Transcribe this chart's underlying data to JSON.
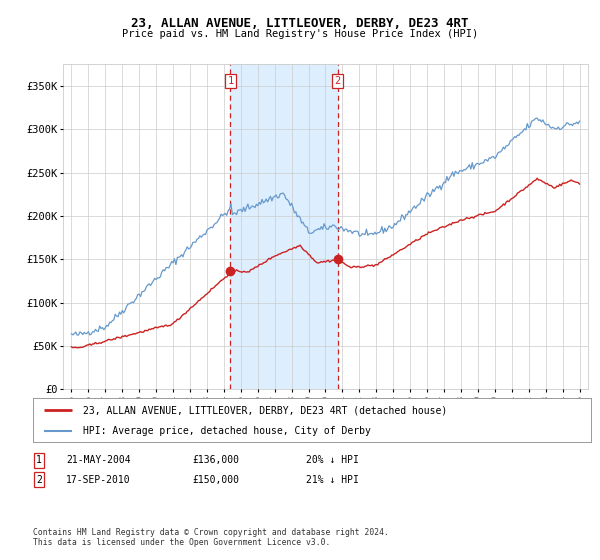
{
  "title": "23, ALLAN AVENUE, LITTLEOVER, DERBY, DE23 4RT",
  "subtitle": "Price paid vs. HM Land Registry's House Price Index (HPI)",
  "hpi_color": "#6699cc",
  "price_color": "#cc2222",
  "marker_color": "#cc2222",
  "background_color": "#ffffff",
  "grid_color": "#cccccc",
  "highlight_color": "#ddeeff",
  "sale1_date": 2004.385,
  "sale1_price": 136000,
  "sale2_date": 2010.716,
  "sale2_price": 150000,
  "legend_house": "23, ALLAN AVENUE, LITTLEOVER, DERBY, DE23 4RT (detached house)",
  "legend_hpi": "HPI: Average price, detached house, City of Derby",
  "footer": "Contains HM Land Registry data © Crown copyright and database right 2024.\nThis data is licensed under the Open Government Licence v3.0.",
  "ylim": [
    0,
    375000
  ],
  "xlim": [
    1994.5,
    2025.5
  ],
  "yticks": [
    0,
    50000,
    100000,
    150000,
    200000,
    250000,
    300000,
    350000
  ],
  "ytick_labels": [
    "£0",
    "£50K",
    "£100K",
    "£150K",
    "£200K",
    "£250K",
    "£300K",
    "£350K"
  ]
}
